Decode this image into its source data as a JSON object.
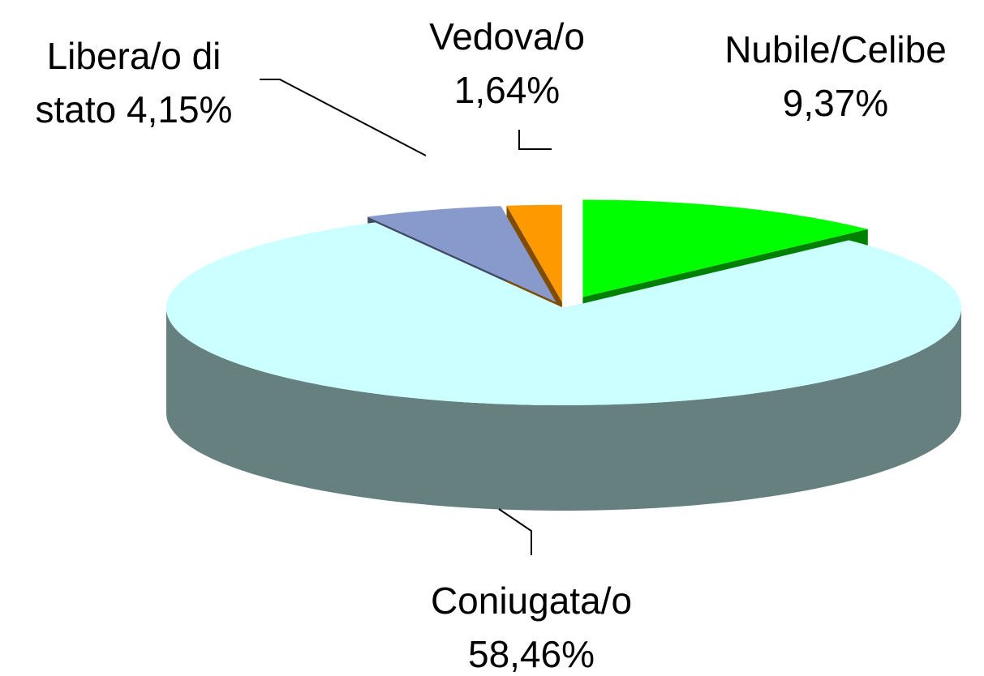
{
  "chart_data": {
    "type": "pie3d",
    "categories": [
      "Nubile/Celibe",
      "Coniugata/o",
      "Libera/o di stato",
      "Vedova/o"
    ],
    "values": [
      9.37,
      58.46,
      4.15,
      1.64
    ],
    "value_labels": [
      "9,37%",
      "58,46%",
      "4,15%",
      "1,64%"
    ],
    "colors": [
      "#00ff00",
      "#ccffff",
      "#8899cc",
      "#ff9900"
    ],
    "side_colors": [
      "#008000",
      "#668080",
      "#404a66",
      "#804c00"
    ]
  }
}
